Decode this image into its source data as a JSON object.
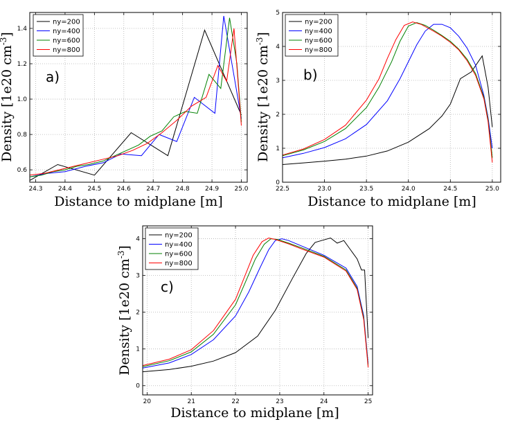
{
  "chart_data": [
    {
      "type": "line",
      "panel_label": "a)",
      "xlabel": "Distance to midplane [m]",
      "ylabel_main": "Density [1e20 cm",
      "ylabel_sup": "-3",
      "ylabel_close": "]",
      "xlim": [
        24.28,
        25.02
      ],
      "ylim": [
        0.53,
        1.49
      ],
      "xticks": [
        24.3,
        24.4,
        24.5,
        24.6,
        24.7,
        24.8,
        24.9,
        25.0
      ],
      "xtick_labels": [
        "24.3",
        "24.4",
        "24.5",
        "24.6",
        "24.7",
        "24.8",
        "24.9",
        "25.0"
      ],
      "yticks": [
        0.6,
        0.8,
        1.0,
        1.2,
        1.4
      ],
      "ytick_labels": [
        "0.6",
        "0.8",
        "1.0",
        "1.2",
        "1.4"
      ],
      "grid": true,
      "legend_position": "top-left",
      "series": [
        {
          "name": "ny=200",
          "color": "#000000",
          "x": [
            24.28,
            24.375,
            24.5,
            24.625,
            24.75,
            24.875,
            25.0
          ],
          "y": [
            0.54,
            0.63,
            0.57,
            0.81,
            0.68,
            1.39,
            0.91
          ]
        },
        {
          "name": "ny=400",
          "color": "#0000ff",
          "x": [
            24.28,
            24.34,
            24.4,
            24.47,
            24.53,
            24.59,
            24.66,
            24.72,
            24.78,
            24.84,
            24.91,
            24.94,
            24.97,
            25.0
          ],
          "y": [
            0.56,
            0.58,
            0.59,
            0.62,
            0.64,
            0.69,
            0.68,
            0.8,
            0.76,
            1.01,
            0.92,
            1.47,
            1.18,
            0.89
          ]
        },
        {
          "name": "ny=600",
          "color": "#008000",
          "x": [
            24.28,
            24.32,
            24.36,
            24.4,
            24.44,
            24.48,
            24.53,
            24.57,
            24.61,
            24.65,
            24.69,
            24.73,
            24.77,
            24.81,
            24.85,
            24.89,
            24.93,
            24.96,
            24.985,
            25.0
          ],
          "y": [
            0.56,
            0.57,
            0.59,
            0.6,
            0.62,
            0.63,
            0.65,
            0.68,
            0.71,
            0.74,
            0.79,
            0.82,
            0.9,
            0.93,
            0.92,
            1.14,
            1.06,
            1.46,
            1.2,
            0.87
          ]
        },
        {
          "name": "ny=800",
          "color": "#ff0000",
          "x": [
            24.28,
            24.33,
            24.38,
            24.43,
            24.48,
            24.53,
            24.58,
            24.63,
            24.68,
            24.73,
            24.78,
            24.83,
            24.88,
            24.92,
            24.95,
            24.975,
            25.0
          ],
          "y": [
            0.57,
            0.58,
            0.6,
            0.62,
            0.64,
            0.66,
            0.68,
            0.71,
            0.75,
            0.81,
            0.88,
            0.96,
            1.01,
            1.19,
            1.1,
            1.4,
            0.85
          ]
        }
      ]
    },
    {
      "type": "line",
      "panel_label": "b)",
      "xlabel": "Distance to midplane [m]",
      "ylabel_main": "Density [1e20 cm",
      "ylabel_sup": "-3",
      "ylabel_close": "]",
      "xlim": [
        22.5,
        25.1
      ],
      "ylim": [
        0.0,
        5.0
      ],
      "xticks": [
        22.5,
        23.0,
        23.5,
        24.0,
        24.5,
        25.0
      ],
      "xtick_labels": [
        "22.5",
        "23.0",
        "23.5",
        "24.0",
        "24.5",
        "25.0"
      ],
      "yticks": [
        0,
        1,
        2,
        3,
        4,
        5
      ],
      "ytick_labels": [
        "0",
        "1",
        "2",
        "3",
        "4",
        "5"
      ],
      "grid": true,
      "legend_position": "top-left",
      "series": [
        {
          "name": "ny=200",
          "color": "#000000",
          "x": [
            22.5,
            22.75,
            23.0,
            23.25,
            23.5,
            23.75,
            24.0,
            24.25,
            24.4,
            24.5,
            24.62,
            24.75,
            24.88,
            24.95,
            25.0
          ],
          "y": [
            0.52,
            0.57,
            0.62,
            0.68,
            0.77,
            0.92,
            1.18,
            1.58,
            1.95,
            2.3,
            3.05,
            3.25,
            3.72,
            2.8,
            1.62
          ]
        },
        {
          "name": "ny=400",
          "color": "#0000ff",
          "x": [
            22.5,
            22.75,
            23.0,
            23.25,
            23.5,
            23.75,
            23.9,
            24.0,
            24.1,
            24.2,
            24.3,
            24.4,
            24.5,
            24.6,
            24.7,
            24.8,
            24.9,
            24.95,
            25.0
          ],
          "y": [
            0.72,
            0.85,
            1.02,
            1.28,
            1.7,
            2.4,
            3.05,
            3.55,
            4.05,
            4.45,
            4.65,
            4.65,
            4.55,
            4.3,
            3.95,
            3.45,
            2.55,
            1.9,
            1.0
          ]
        },
        {
          "name": "ny=600",
          "color": "#008000",
          "x": [
            22.5,
            22.75,
            23.0,
            23.25,
            23.5,
            23.65,
            23.8,
            23.9,
            24.0,
            24.1,
            24.2,
            24.3,
            24.4,
            24.5,
            24.6,
            24.7,
            24.8,
            24.9,
            24.95,
            25.0
          ],
          "y": [
            0.78,
            0.95,
            1.2,
            1.58,
            2.2,
            2.8,
            3.55,
            4.15,
            4.6,
            4.7,
            4.62,
            4.48,
            4.32,
            4.15,
            3.92,
            3.62,
            3.2,
            2.5,
            1.85,
            0.72
          ]
        },
        {
          "name": "ny=800",
          "color": "#ff0000",
          "x": [
            22.5,
            22.75,
            23.0,
            23.25,
            23.5,
            23.65,
            23.75,
            23.85,
            23.95,
            24.05,
            24.15,
            24.3,
            24.4,
            24.5,
            24.6,
            24.7,
            24.8,
            24.9,
            24.95,
            25.0
          ],
          "y": [
            0.8,
            0.98,
            1.26,
            1.68,
            2.42,
            3.05,
            3.65,
            4.2,
            4.62,
            4.72,
            4.65,
            4.45,
            4.3,
            4.12,
            3.9,
            3.58,
            3.15,
            2.45,
            1.78,
            0.58
          ]
        }
      ]
    },
    {
      "type": "line",
      "panel_label": "c)",
      "xlabel": "Distance to midplane [m]",
      "ylabel_main": "Density [1e20 cm",
      "ylabel_sup": "-3",
      "ylabel_close": "]",
      "xlim": [
        19.9,
        25.1
      ],
      "ylim": [
        -0.25,
        4.35
      ],
      "xticks": [
        20,
        21,
        22,
        23,
        24,
        25
      ],
      "xtick_labels": [
        "20",
        "21",
        "22",
        "23",
        "24",
        "25"
      ],
      "yticks": [
        0,
        1,
        2,
        3,
        4
      ],
      "ytick_labels": [
        "0",
        "1",
        "2",
        "3",
        "4"
      ],
      "grid": true,
      "legend_position": "top-left",
      "series": [
        {
          "name": "ny=200",
          "color": "#000000",
          "x": [
            19.9,
            20.5,
            21.0,
            21.5,
            22.0,
            22.5,
            22.9,
            23.3,
            23.6,
            23.8,
            24.0,
            24.15,
            24.3,
            24.45,
            24.6,
            24.75,
            24.85,
            24.92,
            25.0
          ],
          "y": [
            0.38,
            0.44,
            0.53,
            0.67,
            0.9,
            1.35,
            2.05,
            2.95,
            3.6,
            3.9,
            3.97,
            4.02,
            3.88,
            3.95,
            3.7,
            3.45,
            3.15,
            3.15,
            1.3
          ]
        },
        {
          "name": "ny=400",
          "color": "#0000ff",
          "x": [
            19.9,
            20.5,
            21.0,
            21.5,
            22.0,
            22.3,
            22.55,
            22.75,
            22.9,
            23.05,
            23.2,
            23.5,
            24.0,
            24.5,
            24.75,
            24.9,
            25.0
          ],
          "y": [
            0.48,
            0.62,
            0.85,
            1.25,
            1.9,
            2.55,
            3.2,
            3.7,
            3.95,
            4.0,
            3.95,
            3.8,
            3.55,
            3.2,
            2.7,
            1.9,
            0.6
          ]
        },
        {
          "name": "ny=600",
          "color": "#008000",
          "x": [
            19.9,
            20.5,
            21.0,
            21.5,
            22.0,
            22.2,
            22.45,
            22.65,
            22.8,
            22.95,
            23.2,
            23.5,
            24.0,
            24.5,
            24.75,
            24.9,
            25.0
          ],
          "y": [
            0.52,
            0.68,
            0.92,
            1.4,
            2.2,
            2.75,
            3.45,
            3.85,
            4.0,
            3.98,
            3.88,
            3.75,
            3.52,
            3.15,
            2.65,
            1.85,
            0.55
          ]
        },
        {
          "name": "ny=800",
          "color": "#ff0000",
          "x": [
            19.9,
            20.5,
            21.0,
            21.5,
            22.0,
            22.2,
            22.4,
            22.6,
            22.75,
            22.9,
            23.2,
            23.5,
            24.0,
            24.5,
            24.75,
            24.9,
            25.0
          ],
          "y": [
            0.55,
            0.72,
            0.98,
            1.5,
            2.35,
            2.95,
            3.55,
            3.92,
            4.02,
            3.98,
            3.86,
            3.72,
            3.5,
            3.12,
            2.62,
            1.8,
            0.5
          ]
        }
      ]
    }
  ]
}
